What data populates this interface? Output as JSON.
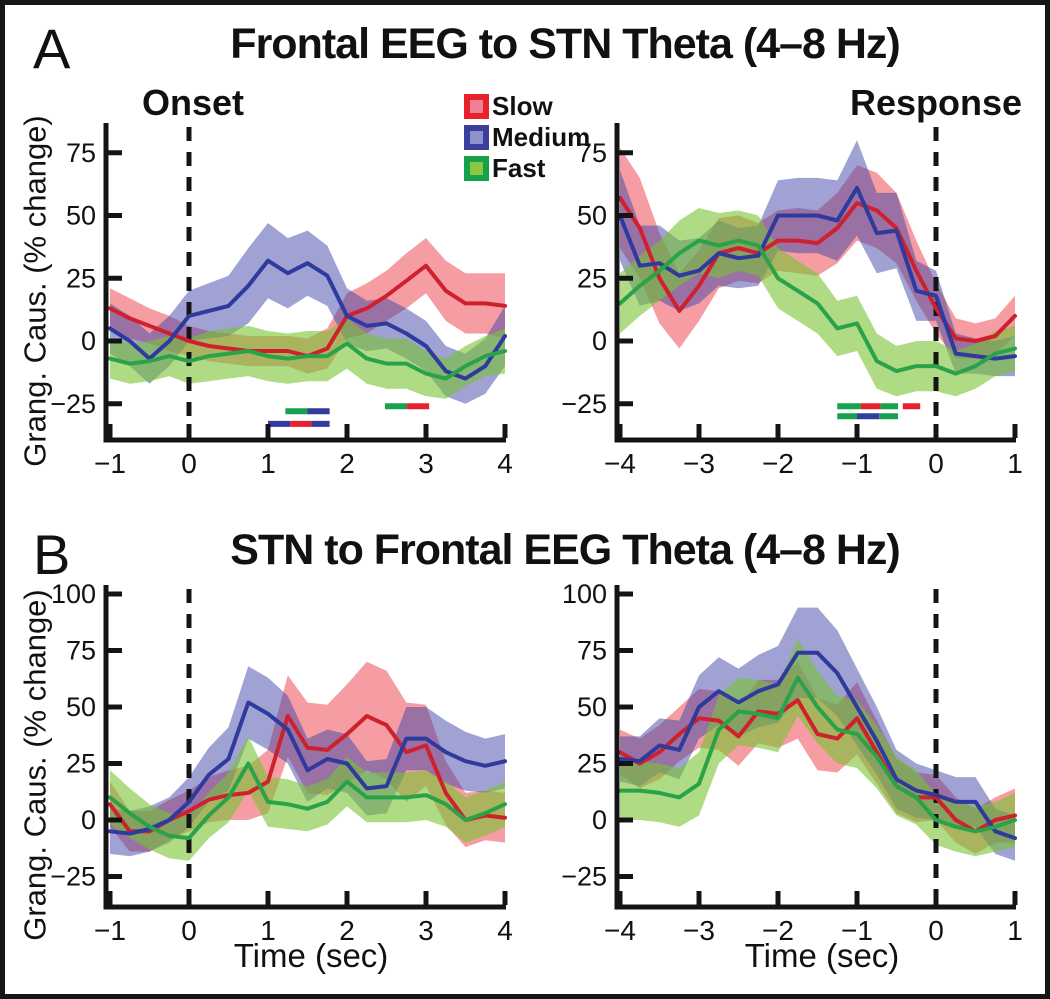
{
  "figure": {
    "panel_a": {
      "letter": "A",
      "title": "Frontal EEG to STN Theta (4–8 Hz)"
    },
    "panel_b": {
      "letter": "B",
      "title": "STN to Frontal EEG Theta (4–8 Hz)"
    },
    "onset_label": "Onset",
    "response_label": "Response",
    "ylabel": "Grang. Caus. (% change)",
    "xlabel": "Time (sec)"
  },
  "legend": {
    "items": [
      {
        "label": "Slow",
        "border": "#e8212d",
        "fill": "#ee8191"
      },
      {
        "label": "Medium",
        "border": "#3a3f9e",
        "fill": "#8f91cb"
      },
      {
        "label": "Fast",
        "border": "#14a24b",
        "fill": "#8dc63f"
      }
    ]
  },
  "chart_data": [
    {
      "id": "a-onset",
      "type": "line",
      "panel": "A",
      "row": "A",
      "col": "left",
      "panel_title": "Frontal EEG to STN Theta (4–8 Hz)",
      "condition": "Onset",
      "ylabel": "Grang. Caus. (% change)",
      "xlabel": "",
      "xlim": [
        -1.05,
        4.01
      ],
      "ylim": [
        -39,
        87
      ],
      "xticks": [
        -1,
        0,
        1,
        2,
        3,
        4
      ],
      "yticks": [
        -25,
        0,
        25,
        50,
        75
      ],
      "event_line_x": 0,
      "grid": false,
      "x": [
        -1,
        -0.75,
        -0.5,
        -0.25,
        0,
        0.25,
        0.5,
        0.75,
        1,
        1.25,
        1.5,
        1.75,
        2,
        2.25,
        2.5,
        2.75,
        3,
        3.25,
        3.5,
        3.75,
        4
      ],
      "series": [
        {
          "name": "Slow",
          "color": "#cf202e",
          "band_color": "rgba(236,60,72,0.5)",
          "mean": [
            13,
            9,
            6,
            3,
            0,
            -2,
            -3,
            -4,
            -4,
            -4,
            -6,
            -3,
            10,
            13,
            18,
            24,
            30,
            20,
            15,
            15,
            14
          ],
          "err": [
            8,
            8,
            7,
            7,
            6,
            6,
            6,
            6,
            6,
            6,
            7,
            8,
            9,
            10,
            10,
            11,
            11,
            12,
            12,
            12,
            13
          ]
        },
        {
          "name": "Medium",
          "color": "#2e3a9d",
          "band_color": "rgba(64,70,168,0.5)",
          "mean": [
            5,
            0,
            -7,
            0,
            10,
            12,
            14,
            22,
            32,
            27,
            31,
            26,
            10,
            6,
            7,
            3,
            -2,
            -12,
            -15,
            -10,
            2
          ],
          "err": [
            10,
            10,
            10,
            10,
            10,
            11,
            12,
            15,
            15,
            14,
            13,
            12,
            11,
            10,
            10,
            10,
            10,
            10,
            10,
            11,
            12
          ]
        },
        {
          "name": "Fast",
          "color": "#2aa24a",
          "band_color": "rgba(120,195,50,0.6)",
          "mean": [
            -7,
            -9,
            -8,
            -6,
            -8,
            -6,
            -5,
            -4,
            -6,
            -7,
            -6,
            -6,
            -1,
            -7,
            -9,
            -9,
            -13,
            -15,
            -10,
            -6,
            -4
          ],
          "err": [
            8,
            8,
            8,
            8,
            9,
            10,
            10,
            10,
            10,
            10,
            10,
            10,
            10,
            10,
            10,
            10,
            9,
            8,
            8,
            8,
            9
          ]
        }
      ],
      "sig_bars": [
        {
          "y": -28,
          "segments": [
            {
              "x0": 1.22,
              "x1": 1.5,
              "color": "#17a24f"
            },
            {
              "x0": 1.5,
              "x1": 1.78,
              "color": "#333c9e"
            }
          ]
        },
        {
          "y": -33,
          "segments": [
            {
              "x0": 1.0,
              "x1": 1.28,
              "color": "#333c9e"
            },
            {
              "x0": 1.28,
              "x1": 1.55,
              "color": "#e8212d"
            },
            {
              "x0": 1.55,
              "x1": 1.78,
              "color": "#333c9e"
            }
          ]
        },
        {
          "y": -26,
          "segments": [
            {
              "x0": 2.48,
              "x1": 2.76,
              "color": "#17a24f"
            },
            {
              "x0": 2.76,
              "x1": 3.04,
              "color": "#e8212d"
            }
          ]
        }
      ]
    },
    {
      "id": "a-response",
      "type": "line",
      "panel": "A",
      "row": "A",
      "col": "right",
      "panel_title": "Frontal EEG to STN Theta (4–8 Hz)",
      "condition": "Response",
      "ylabel": "Grang. Caus. (% change)",
      "xlabel": "",
      "xlim": [
        -4.04,
        1.01
      ],
      "ylim": [
        -39,
        87
      ],
      "xticks": [
        -4,
        -3,
        -2,
        -1,
        0,
        1
      ],
      "yticks": [
        -25,
        0,
        25,
        50,
        75
      ],
      "event_line_x": 0,
      "grid": false,
      "x": [
        -4,
        -3.75,
        -3.5,
        -3.25,
        -3,
        -2.75,
        -2.5,
        -2.25,
        -2,
        -1.75,
        -1.5,
        -1.25,
        -1,
        -0.75,
        -0.5,
        -0.25,
        0,
        0.25,
        0.5,
        0.75,
        1
      ],
      "series": [
        {
          "name": "Slow",
          "color": "#cf202e",
          "band_color": "rgba(236,60,72,0.5)",
          "mean": [
            57,
            45,
            25,
            12,
            22,
            35,
            37,
            35,
            40,
            40,
            39,
            45,
            55,
            52,
            45,
            28,
            13,
            1,
            0,
            2,
            10
          ],
          "err": [
            20,
            20,
            18,
            15,
            14,
            14,
            13,
            12,
            12,
            13,
            13,
            14,
            15,
            15,
            14,
            12,
            10,
            8,
            7,
            7,
            8
          ]
        },
        {
          "name": "Medium",
          "color": "#2e3a9d",
          "band_color": "rgba(64,70,168,0.5)",
          "mean": [
            50,
            30,
            31,
            26,
            28,
            35,
            33,
            34,
            50,
            50,
            50,
            48,
            61,
            43,
            44,
            20,
            18,
            -5,
            -6,
            -7,
            -6
          ],
          "err": [
            18,
            16,
            15,
            14,
            13,
            13,
            12,
            12,
            14,
            15,
            15,
            16,
            19,
            16,
            15,
            12,
            10,
            8,
            7,
            7,
            8
          ]
        },
        {
          "name": "Fast",
          "color": "#2aa24a",
          "band_color": "rgba(120,195,50,0.6)",
          "mean": [
            15,
            22,
            28,
            35,
            40,
            38,
            40,
            38,
            25,
            20,
            15,
            5,
            7,
            -8,
            -12,
            -10,
            -10,
            -13,
            -10,
            -5,
            -3
          ],
          "err": [
            12,
            12,
            12,
            13,
            13,
            13,
            12,
            12,
            12,
            12,
            12,
            11,
            11,
            11,
            10,
            10,
            10,
            9,
            9,
            9,
            9
          ]
        }
      ],
      "sig_bars": [
        {
          "y": -26,
          "segments": [
            {
              "x0": -1.25,
              "x1": -0.95,
              "color": "#17a24f"
            },
            {
              "x0": -0.95,
              "x1": -0.7,
              "color": "#e8212d"
            },
            {
              "x0": -0.7,
              "x1": -0.48,
              "color": "#17a24f"
            },
            {
              "x0": -0.42,
              "x1": -0.2,
              "color": "#e8212d"
            }
          ]
        },
        {
          "y": -30,
          "segments": [
            {
              "x0": -1.25,
              "x1": -1.0,
              "color": "#17a24f"
            },
            {
              "x0": -1.0,
              "x1": -0.72,
              "color": "#333c9e"
            },
            {
              "x0": -0.72,
              "x1": -0.48,
              "color": "#17a24f"
            }
          ]
        }
      ]
    },
    {
      "id": "b-onset",
      "type": "line",
      "panel": "B",
      "row": "B",
      "col": "left",
      "panel_title": "STN to Frontal EEG Theta (4–8 Hz)",
      "condition": "Onset",
      "ylabel": "Grang. Caus. (% change)",
      "xlabel": "Time (sec)",
      "xlim": [
        -1.05,
        4.01
      ],
      "ylim": [
        -38,
        104
      ],
      "xticks": [
        -1,
        0,
        1,
        2,
        3,
        4
      ],
      "yticks": [
        -25,
        0,
        25,
        50,
        75,
        100
      ],
      "event_line_x": 0,
      "grid": false,
      "x": [
        -1,
        -0.75,
        -0.5,
        -0.25,
        0,
        0.25,
        0.5,
        0.75,
        1,
        1.25,
        1.5,
        1.75,
        2,
        2.25,
        2.5,
        2.75,
        3,
        3.25,
        3.5,
        3.75,
        4
      ],
      "series": [
        {
          "name": "Slow",
          "color": "#cf202e",
          "band_color": "rgba(236,60,72,0.5)",
          "mean": [
            7,
            -5,
            -5,
            0,
            4,
            9,
            11,
            12,
            17,
            46,
            32,
            31,
            38,
            46,
            42,
            30,
            33,
            12,
            0,
            2,
            1
          ],
          "err": [
            10,
            9,
            9,
            9,
            9,
            10,
            11,
            12,
            14,
            18,
            20,
            20,
            22,
            24,
            24,
            22,
            18,
            14,
            12,
            11,
            11
          ]
        },
        {
          "name": "Medium",
          "color": "#2e3a9d",
          "band_color": "rgba(64,70,168,0.5)",
          "mean": [
            -5,
            -6,
            -4,
            0,
            8,
            20,
            27,
            52,
            47,
            40,
            22,
            27,
            25,
            14,
            15,
            36,
            36,
            30,
            26,
            24,
            26
          ],
          "err": [
            10,
            10,
            10,
            10,
            11,
            12,
            14,
            16,
            16,
            15,
            14,
            13,
            13,
            12,
            12,
            14,
            14,
            14,
            13,
            12,
            12
          ]
        },
        {
          "name": "Fast",
          "color": "#2aa24a",
          "band_color": "rgba(120,195,50,0.6)",
          "mean": [
            10,
            3,
            -3,
            -7,
            -8,
            2,
            10,
            25,
            8,
            7,
            5,
            8,
            17,
            10,
            10,
            10,
            11,
            7,
            0,
            3,
            7
          ],
          "err": [
            12,
            11,
            10,
            10,
            10,
            10,
            11,
            12,
            11,
            11,
            10,
            10,
            11,
            11,
            11,
            11,
            11,
            10,
            10,
            10,
            10
          ]
        }
      ],
      "sig_bars": []
    },
    {
      "id": "b-response",
      "type": "line",
      "panel": "B",
      "row": "B",
      "col": "right",
      "panel_title": "STN to Frontal EEG Theta (4–8 Hz)",
      "condition": "Response",
      "ylabel": "Grang. Caus. (% change)",
      "xlabel": "Time (sec)",
      "xlim": [
        -4.04,
        1.01
      ],
      "ylim": [
        -38,
        104
      ],
      "xticks": [
        -4,
        -3,
        -2,
        -1,
        0,
        1
      ],
      "yticks": [
        -25,
        0,
        25,
        50,
        75,
        100
      ],
      "event_line_x": 0,
      "grid": false,
      "x": [
        -4,
        -3.75,
        -3.5,
        -3.25,
        -3,
        -2.75,
        -2.5,
        -2.25,
        -2,
        -1.75,
        -1.5,
        -1.25,
        -1,
        -0.75,
        -0.5,
        -0.25,
        0,
        0.25,
        0.5,
        0.75,
        1
      ],
      "series": [
        {
          "name": "Slow",
          "color": "#cf202e",
          "band_color": "rgba(236,60,72,0.5)",
          "mean": [
            30,
            25,
            30,
            38,
            45,
            44,
            37,
            48,
            47,
            53,
            38,
            36,
            45,
            30,
            15,
            10,
            10,
            0,
            -5,
            0,
            2
          ],
          "err": [
            10,
            11,
            12,
            12,
            13,
            13,
            13,
            14,
            15,
            17,
            16,
            15,
            16,
            14,
            12,
            11,
            10,
            10,
            10,
            10,
            12
          ]
        },
        {
          "name": "Medium",
          "color": "#2e3a9d",
          "band_color": "rgba(64,70,168,0.5)",
          "mean": [
            27,
            26,
            33,
            31,
            50,
            57,
            52,
            57,
            60,
            74,
            74,
            65,
            50,
            35,
            18,
            13,
            11,
            8,
            8,
            -5,
            -8
          ],
          "err": [
            10,
            11,
            12,
            13,
            14,
            15,
            15,
            16,
            17,
            20,
            20,
            19,
            17,
            15,
            13,
            12,
            11,
            11,
            11,
            10,
            10
          ]
        },
        {
          "name": "Fast",
          "color": "#2aa24a",
          "band_color": "rgba(120,195,50,0.6)",
          "mean": [
            13,
            13,
            12,
            10,
            16,
            40,
            48,
            47,
            45,
            63,
            50,
            40,
            38,
            28,
            15,
            10,
            0,
            -3,
            -5,
            -3,
            0
          ],
          "err": [
            13,
            13,
            13,
            13,
            14,
            15,
            15,
            15,
            15,
            17,
            16,
            15,
            15,
            14,
            13,
            12,
            11,
            11,
            11,
            11,
            12
          ]
        }
      ],
      "sig_bars": []
    }
  ]
}
